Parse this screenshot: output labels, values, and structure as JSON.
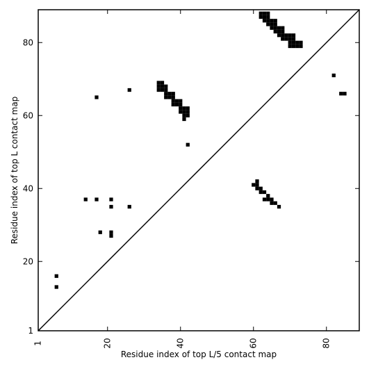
{
  "chart_data": {
    "type": "scatter",
    "xlabel": "Residue index of top L/5 contact map",
    "ylabel": "Residue index of top L contact map",
    "xlim": [
      1,
      89
    ],
    "ylim": [
      1,
      89
    ],
    "x_ticks": [
      1,
      20,
      40,
      60,
      80
    ],
    "y_ticks": [
      1,
      20,
      40,
      60,
      80
    ],
    "x_tick_labels": [
      "1",
      "20",
      "40",
      "60",
      "80"
    ],
    "y_tick_labels": [
      "1",
      "20",
      "40",
      "60",
      "80"
    ],
    "diagonal": true,
    "marker_color": "#000000",
    "series": [
      {
        "values_note_free": true,
        "points": [
          [
            62,
            88
          ],
          [
            63,
            88
          ],
          [
            64,
            88
          ],
          [
            62,
            87
          ],
          [
            63,
            87
          ],
          [
            64,
            87
          ],
          [
            63,
            86
          ],
          [
            64,
            86
          ],
          [
            65,
            86
          ],
          [
            66,
            86
          ],
          [
            64,
            85
          ],
          [
            65,
            85
          ],
          [
            66,
            85
          ],
          [
            65,
            84
          ],
          [
            66,
            84
          ],
          [
            67,
            84
          ],
          [
            68,
            84
          ],
          [
            66,
            83
          ],
          [
            67,
            83
          ],
          [
            68,
            83
          ],
          [
            67,
            82
          ],
          [
            68,
            82
          ],
          [
            69,
            82
          ],
          [
            70,
            82
          ],
          [
            71,
            82
          ],
          [
            68,
            81
          ],
          [
            69,
            81
          ],
          [
            70,
            81
          ],
          [
            71,
            81
          ],
          [
            70,
            80
          ],
          [
            71,
            80
          ],
          [
            72,
            80
          ],
          [
            73,
            80
          ],
          [
            70,
            79
          ],
          [
            71,
            79
          ],
          [
            72,
            79
          ],
          [
            73,
            79
          ],
          [
            34,
            69
          ],
          [
            35,
            69
          ],
          [
            34,
            68
          ],
          [
            35,
            68
          ],
          [
            36,
            68
          ],
          [
            34,
            67
          ],
          [
            35,
            67
          ],
          [
            36,
            67
          ],
          [
            36,
            66
          ],
          [
            37,
            66
          ],
          [
            38,
            66
          ],
          [
            36,
            65
          ],
          [
            37,
            65
          ],
          [
            38,
            65
          ],
          [
            38,
            64
          ],
          [
            39,
            64
          ],
          [
            40,
            64
          ],
          [
            38,
            63
          ],
          [
            39,
            63
          ],
          [
            40,
            63
          ],
          [
            40,
            62
          ],
          [
            41,
            62
          ],
          [
            42,
            62
          ],
          [
            40,
            61
          ],
          [
            41,
            61
          ],
          [
            42,
            61
          ],
          [
            41,
            60
          ],
          [
            42,
            60
          ],
          [
            41,
            59
          ],
          [
            26,
            67
          ],
          [
            17,
            65
          ],
          [
            42,
            52
          ],
          [
            82,
            71
          ],
          [
            84,
            66
          ],
          [
            85,
            66
          ],
          [
            61,
            42
          ],
          [
            60,
            41
          ],
          [
            61,
            41
          ],
          [
            61,
            40
          ],
          [
            62,
            40
          ],
          [
            62,
            39
          ],
          [
            63,
            39
          ],
          [
            64,
            38
          ],
          [
            63,
            37
          ],
          [
            64,
            37
          ],
          [
            65,
            37
          ],
          [
            65,
            36
          ],
          [
            66,
            36
          ],
          [
            67,
            35
          ],
          [
            14,
            37
          ],
          [
            17,
            37
          ],
          [
            21,
            37
          ],
          [
            21,
            35
          ],
          [
            26,
            35
          ],
          [
            18,
            28
          ],
          [
            21,
            28
          ],
          [
            21,
            27
          ],
          [
            6,
            16
          ],
          [
            6,
            13
          ]
        ]
      }
    ]
  }
}
